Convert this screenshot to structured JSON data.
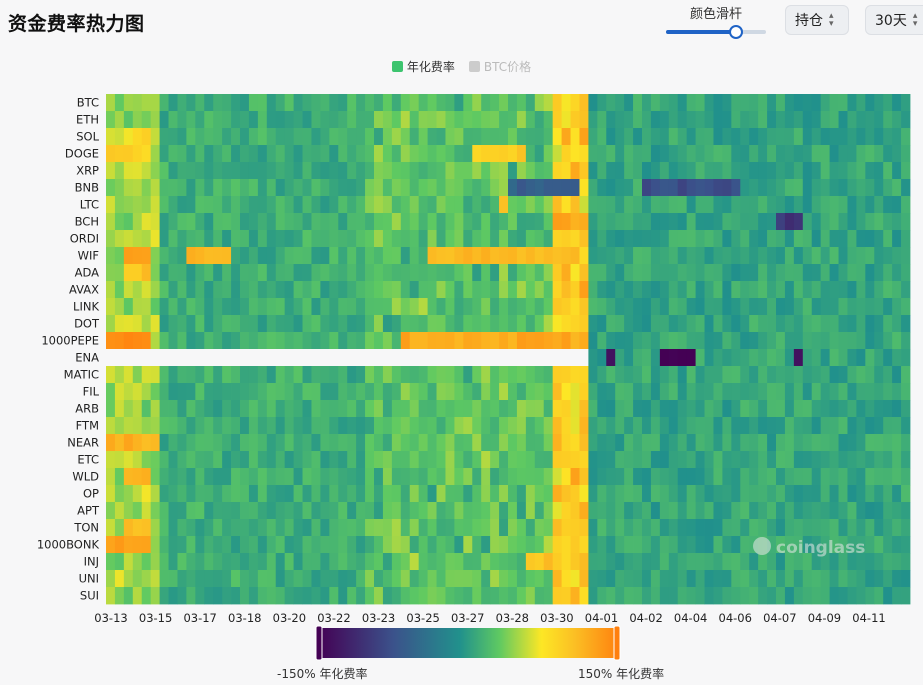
{
  "header": {
    "title": "资金费率热力图",
    "slider_label": "颜色滑杆",
    "slider_value": 0.7,
    "select_type": "持仓",
    "select_range": "30天"
  },
  "legend": [
    {
      "label": "年化费率",
      "color": "#3dc46f",
      "active": true
    },
    {
      "label": "BTC价格",
      "color": "#cccccc",
      "active": false
    }
  ],
  "watermark": "coinglass",
  "colorbar": {
    "min_label": "-150% 年化费率",
    "max_label": "150% 年化费率",
    "colors": [
      "#440154",
      "#3b528b",
      "#21918c",
      "#5ec962",
      "#fde725",
      "#fbbf24",
      "#ff7f0e"
    ]
  },
  "chart_data": {
    "type": "heatmap",
    "title": "",
    "xlabel": "",
    "ylabel": "年化费率",
    "value_range": [
      -150,
      150
    ],
    "x_tick_labels": [
      "03-13",
      "03-15",
      "03-17",
      "03-18",
      "03-20",
      "03-22",
      "03-23",
      "03-25",
      "03-27",
      "03-28",
      "03-30",
      "04-01",
      "04-02",
      "04-04",
      "04-06",
      "04-07",
      "04-09",
      "04-11"
    ],
    "rows": [
      "BTC",
      "ETH",
      "SOL",
      "DOGE",
      "XRP",
      "BNB",
      "LTC",
      "BCH",
      "ORDI",
      "WIF",
      "ADA",
      "AVAX",
      "LINK",
      "DOT",
      "1000PEPE",
      "ENA",
      "MATIC",
      "FIL",
      "ARB",
      "FTM",
      "NEAR",
      "ETC",
      "WLD",
      "OP",
      "APT",
      "TON",
      "1000BONK",
      "INJ",
      "UNI",
      "SUI"
    ],
    "columns_per_day": 3,
    "days": 30,
    "base_rate": 11,
    "missing_ranges": [
      {
        "row": "ENA",
        "from_day": 0,
        "to_day": 18
      }
    ],
    "hotspots": [
      {
        "row": "BTC",
        "day_from": 16.5,
        "day_to": 17.0,
        "value": 95
      },
      {
        "row": "SOL",
        "day_from": 1.0,
        "day_to": 1.5,
        "value": 90
      },
      {
        "row": "DOGE",
        "day_from": 0,
        "day_to": 1.5,
        "value": 90
      },
      {
        "row": "DOGE",
        "day_from": 13.5,
        "day_to": 15.5,
        "value": 95
      },
      {
        "row": "BNB",
        "day_from": 15,
        "day_to": 17.5,
        "value": -60
      },
      {
        "row": "BNB",
        "day_from": 20,
        "day_to": 23.5,
        "value": -80
      },
      {
        "row": "LTC",
        "day_from": 14.5,
        "day_to": 15.0,
        "value": 100
      },
      {
        "row": "BCH",
        "day_from": 16.5,
        "day_to": 17.5,
        "value": 120
      },
      {
        "row": "BCH",
        "day_from": 25,
        "day_to": 26.0,
        "value": -100
      },
      {
        "row": "WIF",
        "day_from": 0.5,
        "day_to": 1.5,
        "value": 130
      },
      {
        "row": "WIF",
        "day_from": 3,
        "day_to": 4.5,
        "value": 110
      },
      {
        "row": "WIF",
        "day_from": 12,
        "day_to": 17.5,
        "value": 110
      },
      {
        "row": "ADA",
        "day_from": 0.5,
        "day_to": 1.5,
        "value": 100
      },
      {
        "row": "1000PEPE",
        "day_from": 0,
        "day_to": 1.5,
        "value": 140
      },
      {
        "row": "1000PEPE",
        "day_from": 11,
        "day_to": 17.5,
        "value": 120
      },
      {
        "row": "ENA",
        "day_from": 18.5,
        "day_to": 19.0,
        "value": -140
      },
      {
        "row": "ENA",
        "day_from": 20.5,
        "day_to": 22.0,
        "value": -150
      },
      {
        "row": "ENA",
        "day_from": 25.5,
        "day_to": 26.0,
        "value": -140
      },
      {
        "row": "NEAR",
        "day_from": 0,
        "day_to": 2.0,
        "value": 115
      },
      {
        "row": "WLD",
        "day_from": 0.5,
        "day_to": 1.5,
        "value": 110
      },
      {
        "row": "TON",
        "day_from": 0.5,
        "day_to": 1.5,
        "value": 100
      },
      {
        "row": "1000BONK",
        "day_from": 0,
        "day_to": 1.5,
        "value": 130
      },
      {
        "row": "INJ",
        "day_from": 15.5,
        "day_to": 17.0,
        "value": 100
      }
    ]
  }
}
